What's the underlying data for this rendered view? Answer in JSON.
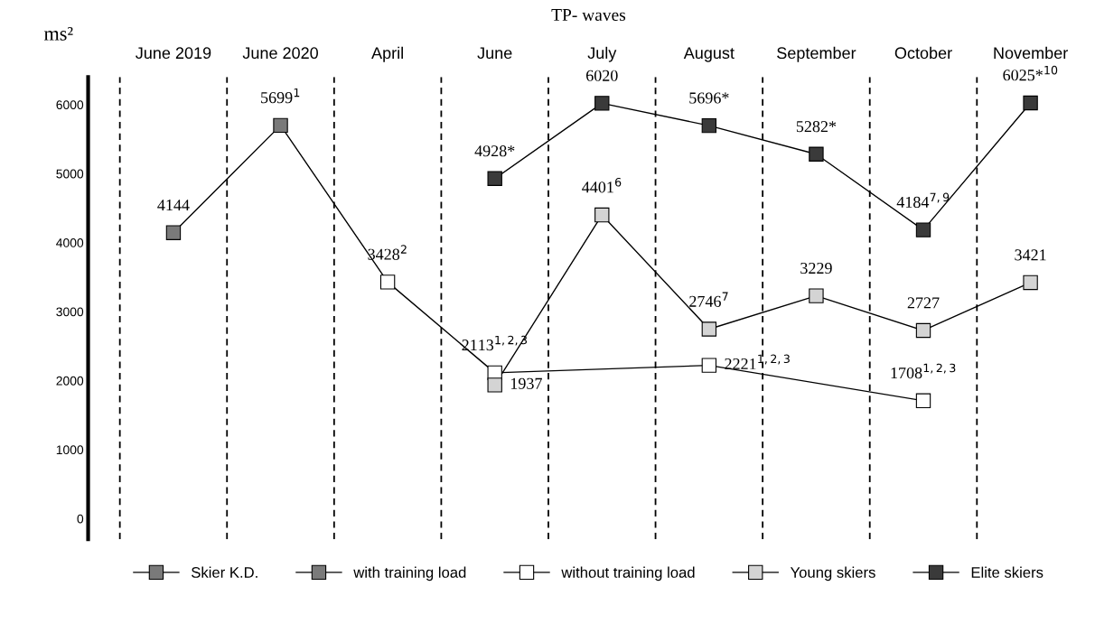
{
  "chart_data": {
    "type": "line",
    "title": "TP- waves",
    "ylabel": "ms²",
    "categories": [
      "June 2019",
      "June 2020",
      "April",
      "June",
      "July",
      "August",
      "September",
      "October",
      "November"
    ],
    "series": [
      {
        "name": "Skier K.D.",
        "colors": [
          "#7a7a7a",
          "#7a7a7a",
          "#ffffff",
          "#ffffff",
          null,
          "#ffffff",
          null,
          "#ffffff",
          null
        ],
        "values": [
          4144,
          5699,
          3428,
          2113,
          null,
          2221,
          null,
          1708,
          null
        ],
        "value_labels": [
          "4144",
          "5699$^{1}$",
          "3428$^{2}$",
          "2113$^{1,2,3}$",
          null,
          "2221$^{1,2,3}$",
          null,
          "1708$^{1,2,3}$",
          null
        ]
      },
      {
        "name": "Young skiers",
        "color": "#d4d4d4",
        "values": [
          null,
          null,
          null,
          1937,
          4401,
          2746,
          3229,
          2727,
          3421
        ],
        "value_labels": [
          null,
          null,
          null,
          "1937",
          "4401$^{6}$",
          "2746$^{7}$",
          "3229",
          "2727",
          "3421"
        ]
      },
      {
        "name": "Elite skiers",
        "color": "#3a3a3a",
        "values": [
          null,
          null,
          null,
          4928,
          6020,
          5696,
          5282,
          4184,
          6025
        ],
        "value_labels": [
          null,
          null,
          null,
          "4928*",
          "6020",
          "5696*",
          "5282*",
          "4184$^{7,9}$",
          "6025*$^{10}$"
        ]
      }
    ],
    "annotations": [
      "with training load",
      "without training load"
    ],
    "ylim": [
      -300,
      6400
    ],
    "yticks": [
      0,
      1000,
      2000,
      3000,
      4000,
      5000,
      6000
    ],
    "grid": "x",
    "legend": "bottom",
    "marker": "square",
    "line_style": "solid"
  }
}
